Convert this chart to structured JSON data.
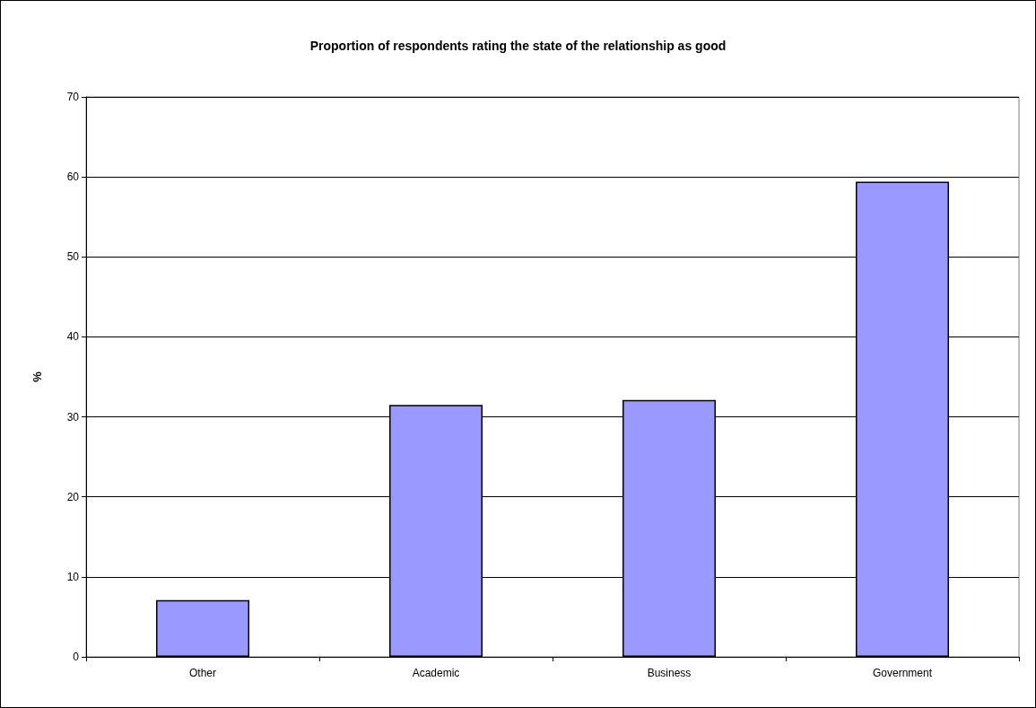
{
  "chart_data": {
    "type": "bar",
    "title": "Proportion of respondents rating the state of the relationship as good",
    "ylabel": "%",
    "categories": [
      "Other",
      "Academic",
      "Business",
      "Government"
    ],
    "values": [
      7.1,
      31.5,
      32.1,
      59.4
    ],
    "color": "#9999ff",
    "ylim": [
      0,
      70
    ],
    "yticks": [
      0,
      10,
      20,
      30,
      40,
      50,
      60,
      70
    ],
    "grid": "y"
  }
}
